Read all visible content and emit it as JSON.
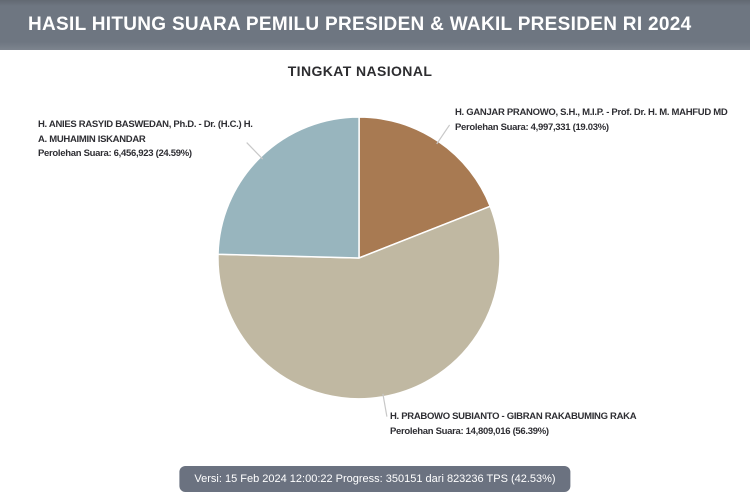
{
  "header": {
    "title": "HASIL HITUNG SUARA PEMILU PRESIDEN & WAKIL PRESIDEN RI 2024"
  },
  "chart": {
    "title": "TINGKAT NASIONAL"
  },
  "candidates": [
    {
      "id": "ganjar-mahfud",
      "name_lines": [
        "H. GANJAR PRANOWO, S.H., M.I.P. - Prof. Dr. H. M. MAHFUD MD"
      ],
      "votes_label": "Perolehan Suara: 4,997,331 (19.03%)"
    },
    {
      "id": "prabowo-gibran",
      "name_lines": [
        "H. PRABOWO SUBIANTO - GIBRAN RAKABUMING RAKA"
      ],
      "votes_label": "Perolehan Suara: 14,809,016 (56.39%)"
    },
    {
      "id": "anies-muhaimin",
      "name_lines": [
        "H. ANIES RASYID BASWEDAN, Ph.D. - Dr. (H.C.) H.",
        "A. MUHAIMIN ISKANDAR"
      ],
      "votes_label": "Perolehan Suara: 6,456,923 (24.59%)"
    }
  ],
  "chart_data": {
    "type": "pie",
    "title": "TINGKAT NASIONAL",
    "direction": "clockwise",
    "start_angle_deg_from_top": 0,
    "legend_position": "callout-labels",
    "slices": [
      {
        "id": "ganjar-mahfud",
        "label": "H. GANJAR PRANOWO, S.H., M.I.P. - Prof. Dr. H. M. MAHFUD MD",
        "votes": 4997331,
        "percent": 19.03,
        "color": "#a87a52"
      },
      {
        "id": "prabowo-gibran",
        "label": "H. PRABOWO SUBIANTO - GIBRAN RAKABUMING RAKA",
        "votes": 14809016,
        "percent": 56.39,
        "color": "#c0b8a2"
      },
      {
        "id": "anies-muhaimin",
        "label": "H. ANIES RASYID BASWEDAN, Ph.D. - Dr. (H.C.) H. A. MUHAIMIN ISKANDAR",
        "votes": 6456923,
        "percent": 24.59,
        "color": "#98b5be"
      }
    ]
  },
  "footer": {
    "status": "Versi: 15 Feb 2024 12:00:22 Progress: 350151 dari 823236 TPS (42.53%)"
  },
  "colors": {
    "header_bg": "#6e7681",
    "footer_bg": "#6b7280",
    "leader_line": "#c8c8c8",
    "label_text": "#2e2e33"
  }
}
